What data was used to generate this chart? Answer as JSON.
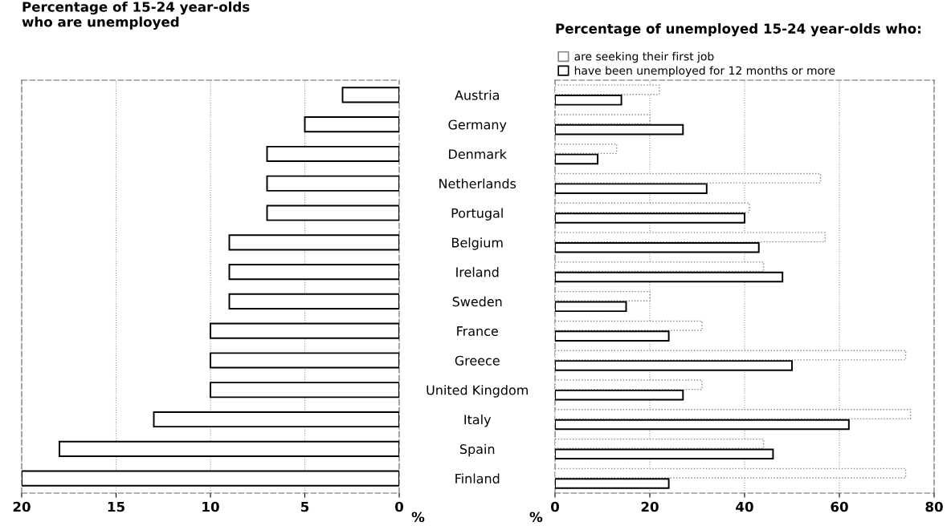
{
  "chart_data": [
    {
      "type": "bar",
      "orientation": "horizontal",
      "title": "Percentage of 15-24 year-olds\nwho are unemployed",
      "xlabel": "%",
      "categories": [
        "Austria",
        "Germany",
        "Denmark",
        "Netherlands",
        "Portugal",
        "Belgium",
        "Ireland",
        "Sweden",
        "France",
        "Greece",
        "United Kingdom",
        "Italy",
        "Spain",
        "Finland"
      ],
      "series": [
        {
          "color": "#000000",
          "values": [
            3,
            5,
            7,
            7,
            7,
            9,
            9,
            9,
            10,
            10,
            10,
            13,
            18,
            20
          ]
        }
      ],
      "xlim": [
        20,
        0
      ],
      "xticks": [
        20,
        15,
        10,
        5,
        0
      ],
      "grid": "x"
    },
    {
      "type": "bar",
      "orientation": "horizontal",
      "title": "Percentage of unemployed 15-24 year-olds who:",
      "xlabel": "%",
      "categories": [
        null,
        null,
        null,
        null,
        null,
        null,
        null,
        null,
        null,
        null,
        null,
        null,
        null,
        null
      ],
      "series": [
        {
          "name": "are seeking their first job",
          "color": "#888888",
          "line_style": "dotted",
          "values": [
            22,
            20,
            13,
            56,
            41,
            57,
            44,
            20,
            31,
            74,
            31,
            75,
            44,
            74
          ]
        },
        {
          "name": "have been unemployed for 12 months or more",
          "color": "#000000",
          "line_style": "solid",
          "values": [
            14,
            27,
            9,
            32,
            40,
            43,
            48,
            15,
            24,
            50,
            27,
            62,
            46,
            24
          ]
        }
      ],
      "xlim": [
        0,
        80
      ],
      "xticks": [
        0,
        20,
        40,
        60,
        80
      ],
      "grid": "x",
      "tick_labels": "x",
      "legend": "top left"
    }
  ]
}
